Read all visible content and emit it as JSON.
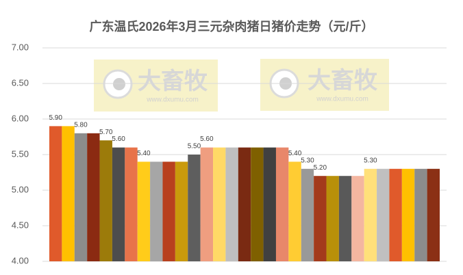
{
  "chart_data": {
    "type": "bar",
    "title": "广东温氏2026年3月三元杂肉猪日猪价走势（元/斤）",
    "values": [
      5.9,
      5.9,
      5.8,
      5.8,
      5.7,
      5.6,
      5.6,
      5.4,
      5.4,
      5.4,
      5.4,
      5.5,
      5.6,
      5.6,
      5.6,
      5.6,
      5.6,
      5.6,
      5.6,
      5.4,
      5.3,
      5.2,
      5.2,
      5.2,
      5.2,
      5.3,
      5.3,
      5.3,
      5.3,
      5.3,
      5.3
    ],
    "value_labels": [
      "5.90",
      null,
      "5.80",
      null,
      "5.70",
      "5.60",
      null,
      "5.40",
      null,
      null,
      null,
      "5.50",
      "5.60",
      null,
      null,
      null,
      null,
      null,
      null,
      "5.40",
      "5.30",
      "5.20",
      null,
      null,
      null,
      "5.30",
      null,
      null,
      null,
      null,
      null
    ],
    "colors": [
      "#e05a2b",
      "#ffc000",
      "#8c8c8c",
      "#8b2a12",
      "#9c7b0a",
      "#4d4d4d",
      "#e8734a",
      "#ffcc1a",
      "#a6a6a6",
      "#b8401e",
      "#c99a0c",
      "#5e5e5e",
      "#ef9e80",
      "#ffd966",
      "#bfbfbf",
      "#7a2a12",
      "#7f6000",
      "#404040",
      "#e8876a",
      "#ffcc33",
      "#999999",
      "#a33a1c",
      "#b8900a",
      "#595959",
      "#f4b6a0",
      "#ffe07a",
      "#c0c0c0",
      "#e05a2b",
      "#ffc000",
      "#8c8c8c",
      "#8b3015"
    ],
    "ylim": [
      4,
      7
    ],
    "yticks": [
      {
        "value": 4,
        "label": "4.00"
      },
      {
        "value": 4.5,
        "label": "4.50"
      },
      {
        "value": 5,
        "label": "5.00"
      },
      {
        "value": 5.5,
        "label": "5.50"
      },
      {
        "value": 6,
        "label": "6.00"
      },
      {
        "value": 6.5,
        "label": "6.50"
      },
      {
        "value": 7,
        "label": "7.00"
      }
    ],
    "grid": true,
    "watermark": {
      "text": "大畜牧",
      "url": "www.dxumu.com"
    }
  }
}
